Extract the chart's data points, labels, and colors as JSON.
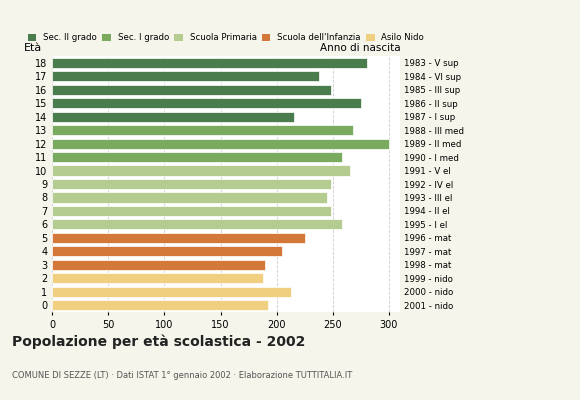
{
  "ages": [
    18,
    17,
    16,
    15,
    14,
    13,
    12,
    11,
    10,
    9,
    8,
    7,
    6,
    5,
    4,
    3,
    2,
    1,
    0
  ],
  "values": [
    280,
    238,
    248,
    275,
    215,
    268,
    300,
    258,
    265,
    248,
    245,
    248,
    258,
    225,
    205,
    190,
    188,
    213,
    192
  ],
  "anno_nascita": [
    "1983 - V sup",
    "1984 - VI sup",
    "1985 - III sup",
    "1986 - II sup",
    "1987 - I sup",
    "1988 - III med",
    "1989 - II med",
    "1990 - I med",
    "1991 - V el",
    "1992 - IV el",
    "1993 - III el",
    "1994 - II el",
    "1995 - I el",
    "1996 - mat",
    "1997 - mat",
    "1998 - mat",
    "1999 - nido",
    "2000 - nido",
    "2001 - nido"
  ],
  "colors": [
    "#4a7c4e",
    "#4a7c4e",
    "#4a7c4e",
    "#4a7c4e",
    "#4a7c4e",
    "#7aaa5e",
    "#7aaa5e",
    "#7aaa5e",
    "#b5cc90",
    "#b5cc90",
    "#b5cc90",
    "#b5cc90",
    "#b5cc90",
    "#d4783a",
    "#d4783a",
    "#d4783a",
    "#f0d080",
    "#f0d080",
    "#f0d080"
  ],
  "legend_labels": [
    "Sec. II grado",
    "Sec. I grado",
    "Scuola Primaria",
    "Scuola dell'Infanzia",
    "Asilo Nido"
  ],
  "legend_colors": [
    "#4a7c4e",
    "#7aaa5e",
    "#b5cc90",
    "#d4783a",
    "#f0d080"
  ],
  "title": "Popolazione per età scolastica - 2002",
  "subtitle": "COMUNE DI SEZZE (LT) · Dati ISTAT 1° gennaio 2002 · Elaborazione TUTTITALIA.IT",
  "ylabel_left": "Età",
  "label_right": "Anno di nascita",
  "xlim": [
    0,
    310
  ],
  "xticks": [
    0,
    50,
    100,
    150,
    200,
    250,
    300
  ],
  "bg_color": "#f5f5eb",
  "plot_bg_color": "#ffffff",
  "grid_color": "#cccccc"
}
